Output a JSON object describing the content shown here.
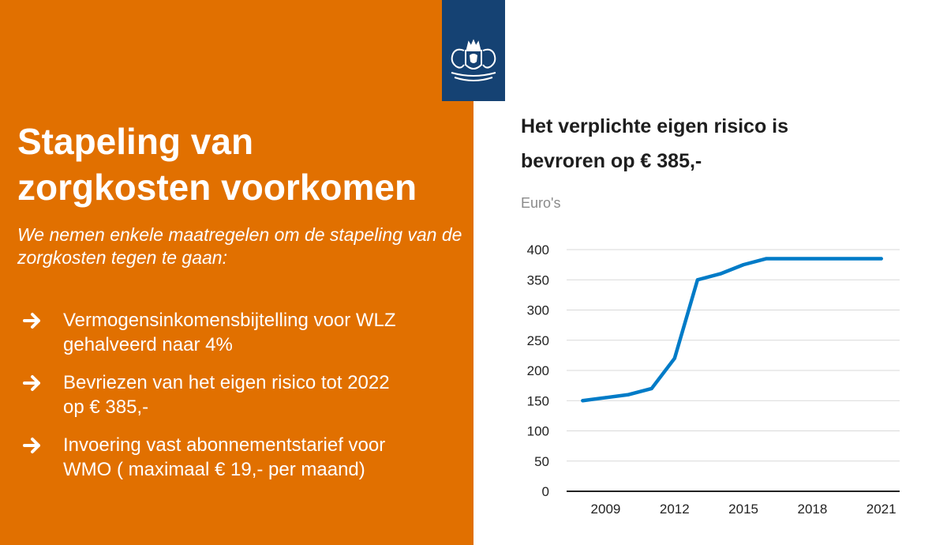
{
  "left": {
    "title_line1": "Stapeling van",
    "title_line2": "zorgkosten voorkomen",
    "intro": "We nemen enkele maatregelen om de stapeling van de zorgkosten tegen te gaan:",
    "bullets": [
      {
        "line1": "Vermogensinkomensbijtelling voor WLZ",
        "line2": "gehalveerd naar 4%"
      },
      {
        "line1": "Bevriezen van het eigen risico tot 2022",
        "line2": "op € 385,-"
      },
      {
        "line1": "Invoering vast abonnementstarief voor",
        "line2": "WMO ( maximaal € 19,- per maand)"
      }
    ],
    "bullet_icon": "arrow-right-icon",
    "colors": {
      "panel": "#E17000",
      "logo_bg": "#154273",
      "text": "#ffffff"
    }
  },
  "logo": {
    "icon": "coat-of-arms-icon"
  },
  "chart_data": {
    "type": "line",
    "title_line1": "Het verplichte eigen risico is",
    "title_line2": "bevroren op € 385,-",
    "ylabel": "Euro's",
    "xlabel": "",
    "ylim": [
      0,
      400
    ],
    "yticks": [
      0,
      50,
      100,
      150,
      200,
      250,
      300,
      350,
      400
    ],
    "xticks": [
      2009,
      2012,
      2015,
      2018,
      2021
    ],
    "xlim": [
      2007.3,
      2021.8
    ],
    "grid": true,
    "series": [
      {
        "color": "#007BC7",
        "x": [
          2008,
          2009,
          2010,
          2011,
          2012,
          2013,
          2014,
          2015,
          2016,
          2017,
          2018,
          2019,
          2020,
          2021
        ],
        "y": [
          150,
          155,
          160,
          170,
          220,
          350,
          360,
          375,
          385,
          385,
          385,
          385,
          385,
          385
        ]
      }
    ]
  }
}
